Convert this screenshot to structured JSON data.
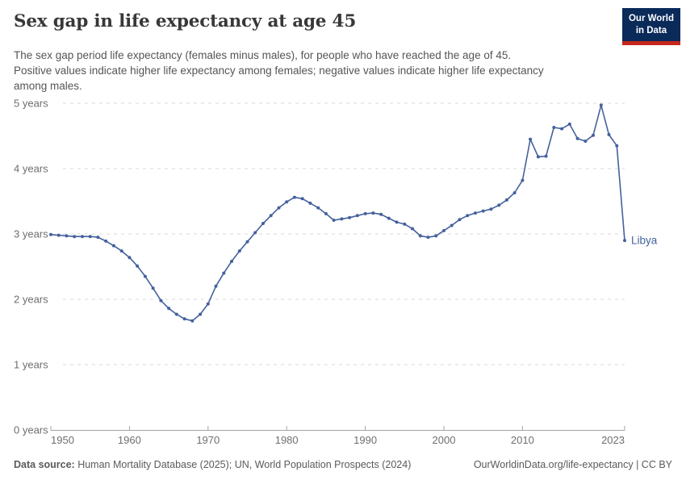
{
  "header": {
    "title": "Sex gap in life expectancy at age 45",
    "subtitle": "The sex gap period life expectancy (females minus males), for people who have reached the age of 45.\nPositive values indicate higher life expectancy among females; negative values indicate higher life expectancy\namong males.",
    "logo": {
      "line1": "Our World",
      "line2": "in Data",
      "bg_color": "#0a2a5a",
      "accent_color": "#c5281c"
    }
  },
  "chart_data": {
    "type": "line",
    "title": "Sex gap in life expectancy at age 45",
    "entity_label": "Libya",
    "xlim": [
      1950,
      2023
    ],
    "ylim": [
      0,
      5
    ],
    "x_ticks": [
      1950,
      1960,
      1970,
      1980,
      1990,
      2000,
      2010,
      2023
    ],
    "y_ticks": [
      0,
      1,
      2,
      3,
      4,
      5
    ],
    "y_tick_suffix": " years",
    "grid": "dashed-horizontal",
    "legend_position": "end-of-line-label",
    "series": [
      {
        "name": "Libya",
        "color": "#44619D",
        "years": [
          1950,
          1951,
          1952,
          1953,
          1954,
          1955,
          1956,
          1957,
          1958,
          1959,
          1960,
          1961,
          1962,
          1963,
          1964,
          1965,
          1966,
          1967,
          1968,
          1969,
          1970,
          1971,
          1972,
          1973,
          1974,
          1975,
          1976,
          1977,
          1978,
          1979,
          1980,
          1981,
          1982,
          1983,
          1984,
          1985,
          1986,
          1987,
          1988,
          1989,
          1990,
          1991,
          1992,
          1993,
          1994,
          1995,
          1996,
          1997,
          1998,
          1999,
          2000,
          2001,
          2002,
          2003,
          2004,
          2005,
          2006,
          2007,
          2008,
          2009,
          2010,
          2011,
          2012,
          2013,
          2014,
          2015,
          2016,
          2017,
          2018,
          2019,
          2020,
          2021,
          2022,
          2023
        ],
        "values": [
          2.99,
          2.98,
          2.97,
          2.96,
          2.96,
          2.96,
          2.95,
          2.89,
          2.82,
          2.74,
          2.64,
          2.51,
          2.35,
          2.17,
          1.98,
          1.86,
          1.77,
          1.7,
          1.67,
          1.77,
          1.93,
          2.2,
          2.4,
          2.58,
          2.74,
          2.88,
          3.02,
          3.16,
          3.28,
          3.4,
          3.49,
          3.56,
          3.54,
          3.47,
          3.4,
          3.31,
          3.21,
          3.23,
          3.25,
          3.28,
          3.31,
          3.32,
          3.3,
          3.24,
          3.18,
          3.15,
          3.08,
          2.97,
          2.95,
          2.97,
          3.05,
          3.13,
          3.22,
          3.28,
          3.32,
          3.35,
          3.38,
          3.44,
          3.52,
          3.63,
          3.82,
          4.45,
          4.18,
          4.19,
          4.63,
          4.61,
          4.68,
          4.46,
          4.42,
          4.51,
          4.97,
          4.52,
          4.35,
          2.9
        ]
      }
    ],
    "style": {
      "grid_color": "#d9d9d9",
      "axis_color": "#a5a5a5",
      "tick_label_color": "#6e6e6e"
    }
  },
  "footer": {
    "datasource_label": "Data source:",
    "datasource_text": " Human Mortality Database (2025); UN, World Population Prospects (2024)",
    "right_text": "OurWorldinData.org/life-expectancy | CC BY"
  }
}
